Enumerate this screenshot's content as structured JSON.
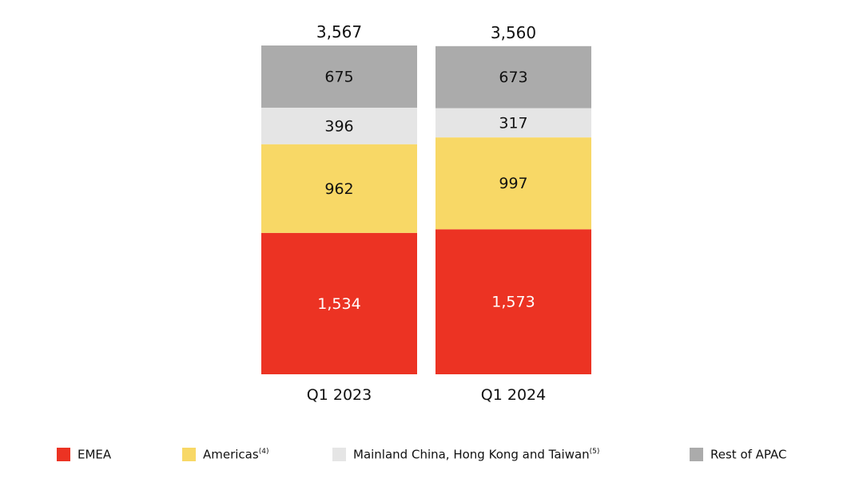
{
  "chart_data": {
    "type": "bar",
    "stacked": true,
    "categories": [
      "Q1 2023",
      "Q1 2024"
    ],
    "totals": [
      "3,567",
      "3,560"
    ],
    "series": [
      {
        "name": "EMEA",
        "values": [
          1534,
          1573
        ],
        "labels": [
          "1,534",
          "1,573"
        ],
        "color": "#EC3323",
        "text_color": "#ffffff"
      },
      {
        "name": "Americas",
        "note": "(4)",
        "values": [
          962,
          997
        ],
        "labels": [
          "962",
          "997"
        ],
        "color": "#F8D866",
        "text_color": "#111111"
      },
      {
        "name": "Mainland China, Hong Kong and Taiwan",
        "note": "(5)",
        "values": [
          396,
          317
        ],
        "labels": [
          "396",
          "317"
        ],
        "color": "#E5E5E5",
        "text_color": "#111111"
      },
      {
        "name": "Rest of APAC",
        "values": [
          675,
          673
        ],
        "labels": [
          "675",
          "673"
        ],
        "color": "#ABABAB",
        "text_color": "#111111"
      }
    ],
    "legend_position": "bottom",
    "grid": false
  }
}
